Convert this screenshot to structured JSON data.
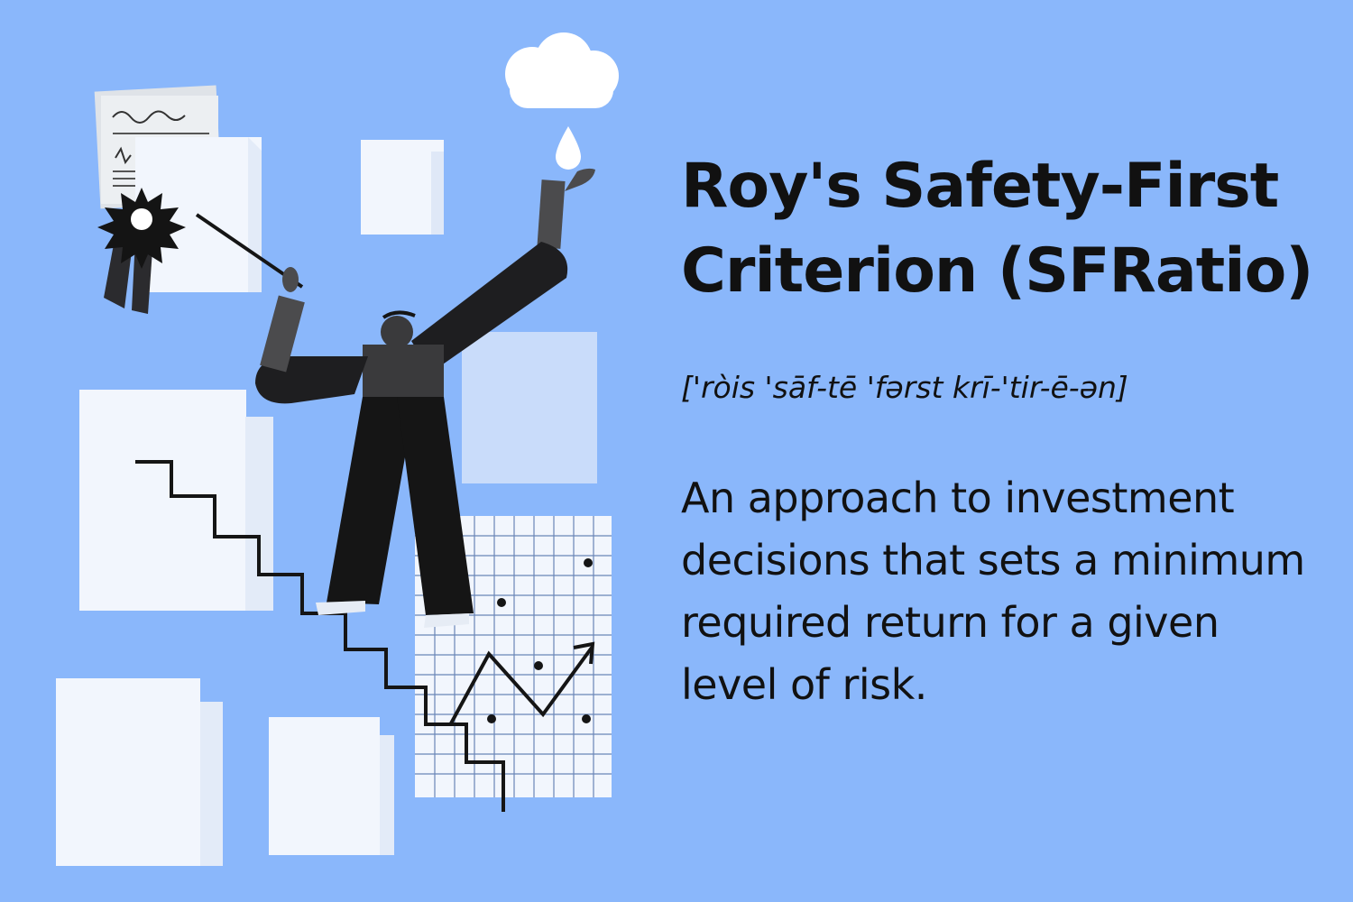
{
  "term": {
    "title_line1": "Roy's Safety-First",
    "title_line2": "Criterion (SFRatio)",
    "pronunciation": "['ròis 'sāf-tē 'fərst krī-'tir-ē-ən]",
    "definition": "An approach to investment decisions that sets a minimum required return for a given level of risk."
  },
  "colors": {
    "background": "#8ab7fb",
    "paper": "#f2f6fd",
    "paper_light": "#c9dcfa",
    "figure": "#1c1c1e",
    "text": "#111111"
  },
  "illustration": {
    "icons": [
      "cloud-icon",
      "water-drop-icon",
      "award-rosette-icon",
      "pointer-stick-icon",
      "staircase-icon",
      "grid-chart-icon",
      "trend-arrow-icon"
    ]
  }
}
